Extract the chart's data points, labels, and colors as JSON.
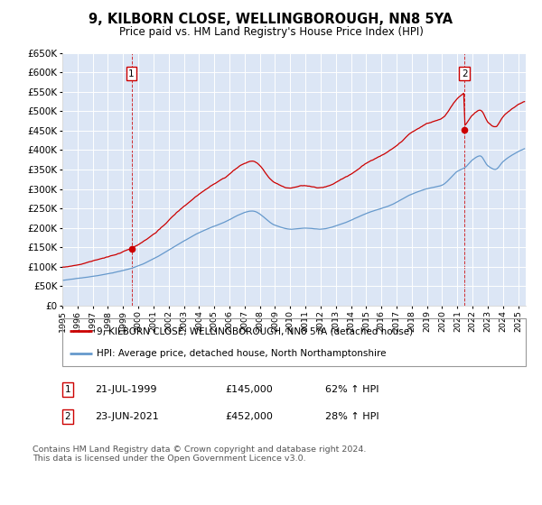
{
  "title": "9, KILBORN CLOSE, WELLINGBOROUGH, NN8 5YA",
  "subtitle": "Price paid vs. HM Land Registry's House Price Index (HPI)",
  "ylim": [
    0,
    650000
  ],
  "yticks": [
    0,
    50000,
    100000,
    150000,
    200000,
    250000,
    300000,
    350000,
    400000,
    450000,
    500000,
    550000,
    600000,
    650000
  ],
  "ytick_labels": [
    "£0",
    "£50K",
    "£100K",
    "£150K",
    "£200K",
    "£250K",
    "£300K",
    "£350K",
    "£400K",
    "£450K",
    "£500K",
    "£550K",
    "£600K",
    "£650K"
  ],
  "plot_bg_color": "#dce6f5",
  "grid_color": "#ffffff",
  "red_line_color": "#cc0000",
  "blue_line_color": "#6699cc",
  "transaction1_year": 1999.55,
  "transaction1_price": 145000,
  "transaction2_year": 2021.47,
  "transaction2_price": 452000,
  "legend_label_red": "9, KILBORN CLOSE, WELLINGBOROUGH, NN8 5YA (detached house)",
  "legend_label_blue": "HPI: Average price, detached house, North Northamptonshire",
  "annotation1_label": "1",
  "annotation1_date": "21-JUL-1999",
  "annotation1_price": "£145,000",
  "annotation1_hpi": "62% ↑ HPI",
  "annotation2_label": "2",
  "annotation2_date": "23-JUN-2021",
  "annotation2_price": "£452,000",
  "annotation2_hpi": "28% ↑ HPI",
  "footer": "Contains HM Land Registry data © Crown copyright and database right 2024.\nThis data is licensed under the Open Government Licence v3.0.",
  "xmin": 1995.0,
  "xmax": 2025.5
}
